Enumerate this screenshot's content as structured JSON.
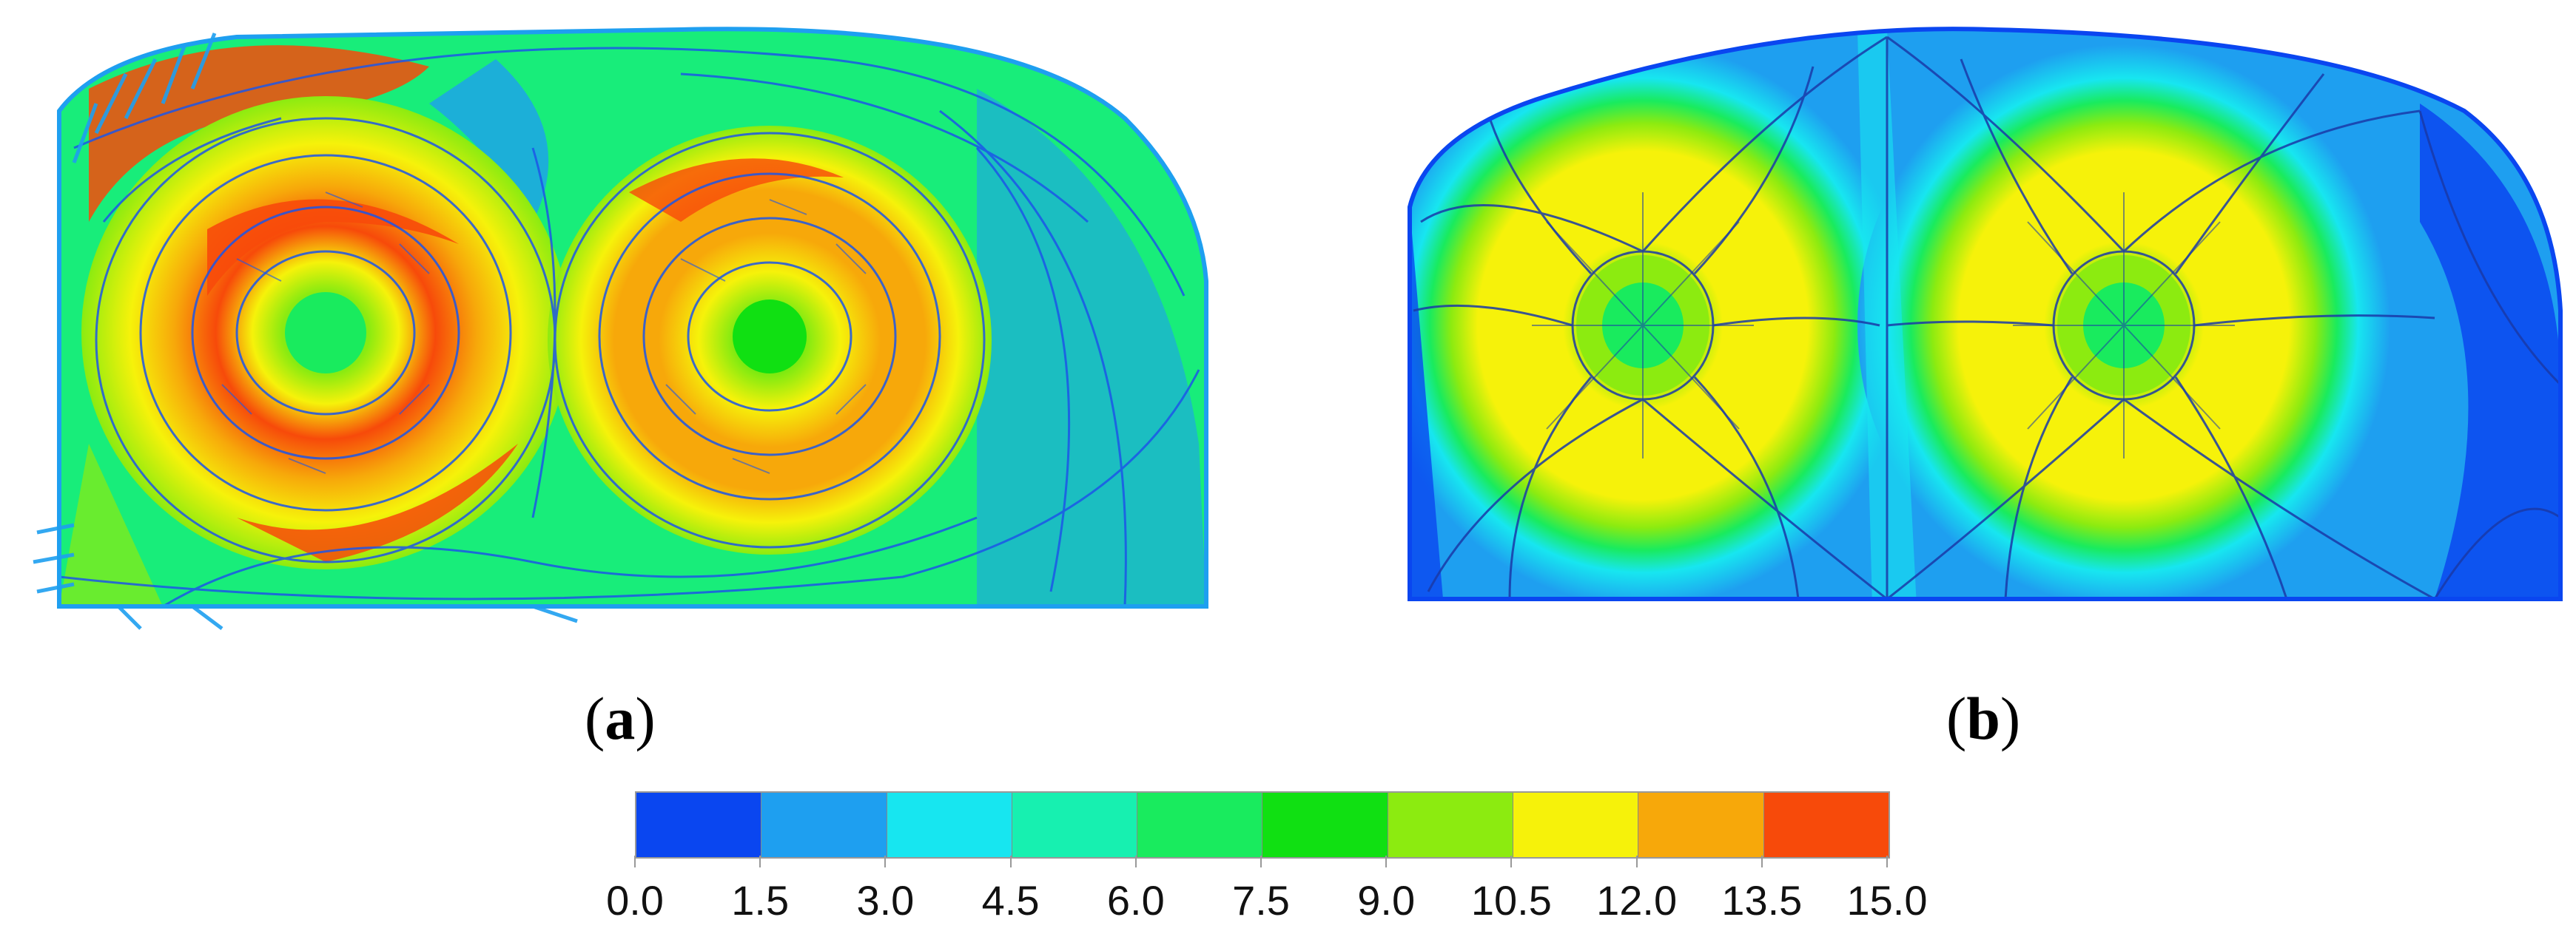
{
  "figure": {
    "panel_a_label": "a",
    "panel_b_label": "b"
  },
  "colorbar": {
    "colors": [
      "#0a46f0",
      "#1e9ff0",
      "#17e6f0",
      "#17f0b0",
      "#19eb5e",
      "#10e012",
      "#8ceb10",
      "#f6f20a",
      "#f7a80a",
      "#f74a0a"
    ],
    "tick_labels": [
      "0.0",
      "1.5",
      "3.0",
      "4.5",
      "6.0",
      "7.5",
      "9.0",
      "10.5",
      "12.0",
      "13.5",
      "15.0"
    ]
  }
}
